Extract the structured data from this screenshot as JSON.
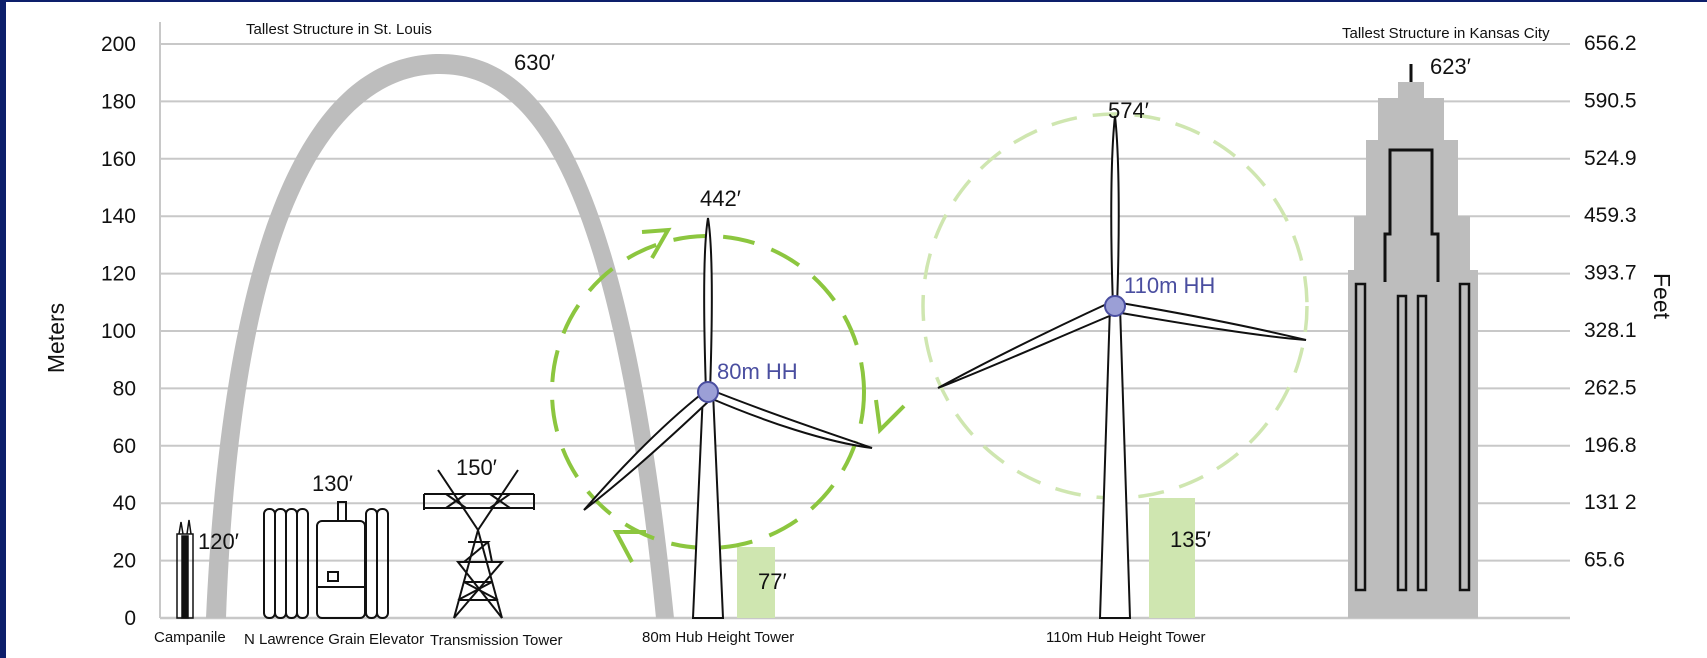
{
  "axes": {
    "left_title": "Meters",
    "right_title": "Feet",
    "meter_ticks": [
      "0",
      "20",
      "40",
      "60",
      "80",
      "100",
      "120",
      "140",
      "160",
      "180",
      "200"
    ],
    "feet_ticks": [
      "65.6",
      "131 2",
      "196.8",
      "262.5",
      "328.1",
      "393.7",
      "459.3",
      "524.9",
      "590.5",
      "656.2"
    ]
  },
  "annotations": {
    "st_louis": "Tallest Structure in St. Louis",
    "kansas_city": "Tallest Structure in Kansas City"
  },
  "structures": {
    "campanile": {
      "label": "Campanile",
      "height": "120′",
      "height_m": 36.6
    },
    "grain_elevator": {
      "label": "N Lawrence Grain Elevator",
      "height": "130′",
      "height_m": 39.6
    },
    "transmission_tower": {
      "label": "Transmission Tower",
      "height": "150′",
      "height_m": 45.7
    },
    "arch": {
      "height": "630′",
      "height_m": 192
    },
    "tower_80": {
      "label": "80m Hub Height Tower",
      "tip_height": "442′",
      "hub": "80m HH",
      "clearance": "77′",
      "hub_m": 80,
      "clearance_m": 23.5
    },
    "tower_110": {
      "label": "110m Hub Height Tower",
      "tip_height": "574′",
      "hub": "110m HH",
      "clearance": "135′",
      "hub_m": 110,
      "clearance_m": 41.1
    },
    "kc_tower": {
      "height": "623′",
      "height_m": 190
    }
  },
  "colors": {
    "grid": "#c8c8c8",
    "gray": "#bdbdbd",
    "green": "#8cc63f",
    "green_light": "#cfe6b0",
    "hub": "#9b9fd6",
    "hub_text": "#4a4ea0",
    "frame": "#0d1f6b"
  }
}
